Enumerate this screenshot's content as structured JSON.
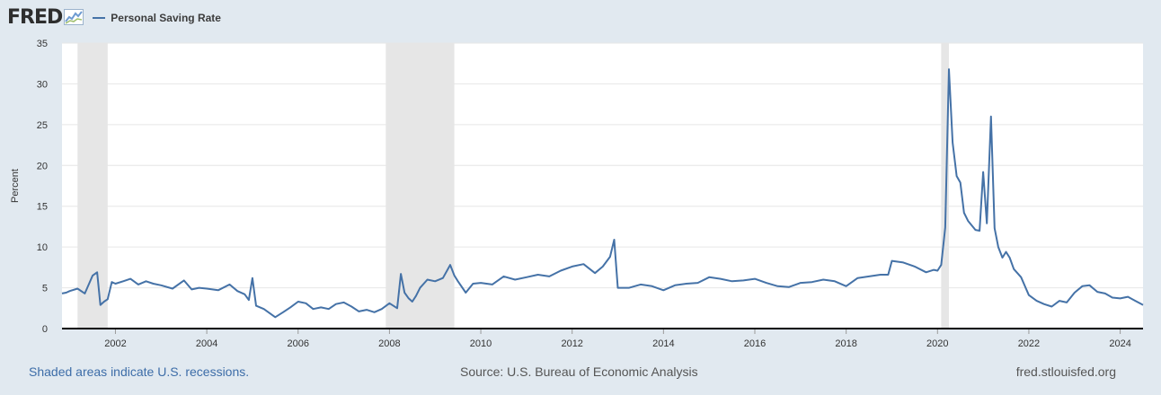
{
  "header": {
    "logo_text": "FRED",
    "logo_icon": "line-graph-icon",
    "series_label": "Personal Saving Rate"
  },
  "footer": {
    "recession_note": "Shaded areas indicate U.S. recessions.",
    "source": "Source: U.S. Bureau of Economic Analysis",
    "site": "fred.stlouisfed.org"
  },
  "colors": {
    "line": "#4572a7",
    "recession": "#e6e6e6",
    "plot_bg": "#ffffff",
    "page_bg": "#e1e9f0",
    "logo_accent": "#6e9bd1"
  },
  "chart_data": {
    "type": "line",
    "title": "",
    "xlabel": "",
    "ylabel": "Percent",
    "xlim": [
      2000.83,
      2024.5
    ],
    "ylim": [
      0,
      35
    ],
    "yticks": [
      0,
      5,
      10,
      15,
      20,
      25,
      30,
      35
    ],
    "xticks": [
      2002,
      2004,
      2006,
      2008,
      2010,
      2012,
      2014,
      2016,
      2018,
      2020,
      2022,
      2024
    ],
    "grid": true,
    "legend": "top-left",
    "recessions": [
      [
        2001.17,
        2001.83
      ],
      [
        2007.92,
        2009.42
      ],
      [
        2020.08,
        2020.25
      ]
    ],
    "series": [
      {
        "name": "Personal Saving Rate",
        "x": [
          2000.83,
          2000.92,
          2001.0,
          2001.17,
          2001.33,
          2001.5,
          2001.6,
          2001.67,
          2001.75,
          2001.83,
          2001.92,
          2002.0,
          2002.17,
          2002.33,
          2002.5,
          2002.67,
          2002.83,
          2003.0,
          2003.25,
          2003.5,
          2003.67,
          2003.83,
          2004.0,
          2004.25,
          2004.5,
          2004.67,
          2004.83,
          2004.92,
          2005.0,
          2005.08,
          2005.25,
          2005.5,
          2005.67,
          2005.83,
          2006.0,
          2006.17,
          2006.33,
          2006.5,
          2006.67,
          2006.83,
          2007.0,
          2007.17,
          2007.33,
          2007.5,
          2007.67,
          2007.83,
          2008.0,
          2008.17,
          2008.25,
          2008.33,
          2008.42,
          2008.5,
          2008.58,
          2008.67,
          2008.83,
          2009.0,
          2009.17,
          2009.33,
          2009.42,
          2009.5,
          2009.67,
          2009.83,
          2010.0,
          2010.25,
          2010.5,
          2010.75,
          2011.0,
          2011.25,
          2011.5,
          2011.75,
          2012.0,
          2012.25,
          2012.5,
          2012.67,
          2012.83,
          2012.92,
          2013.0,
          2013.25,
          2013.5,
          2013.75,
          2014.0,
          2014.25,
          2014.5,
          2014.75,
          2015.0,
          2015.25,
          2015.5,
          2015.75,
          2016.0,
          2016.25,
          2016.5,
          2016.75,
          2017.0,
          2017.25,
          2017.5,
          2017.75,
          2018.0,
          2018.25,
          2018.5,
          2018.75,
          2018.92,
          2019.0,
          2019.25,
          2019.5,
          2019.75,
          2019.92,
          2020.0,
          2020.08,
          2020.17,
          2020.25,
          2020.33,
          2020.42,
          2020.5,
          2020.58,
          2020.67,
          2020.83,
          2020.92,
          2021.0,
          2021.08,
          2021.17,
          2021.25,
          2021.33,
          2021.42,
          2021.5,
          2021.58,
          2021.67,
          2021.83,
          2022.0,
          2022.17,
          2022.33,
          2022.5,
          2022.67,
          2022.83,
          2023.0,
          2023.17,
          2023.33,
          2023.5,
          2023.67,
          2023.83,
          2024.0,
          2024.17,
          2024.33,
          2024.5
        ],
        "values": [
          4.3,
          4.4,
          4.6,
          4.9,
          4.3,
          6.5,
          6.9,
          2.9,
          3.3,
          3.6,
          5.7,
          5.5,
          5.8,
          6.1,
          5.4,
          5.8,
          5.5,
          5.3,
          4.9,
          5.9,
          4.8,
          5.0,
          4.9,
          4.7,
          5.4,
          4.6,
          4.2,
          3.5,
          6.2,
          2.8,
          2.4,
          1.4,
          2.0,
          2.6,
          3.3,
          3.1,
          2.4,
          2.6,
          2.4,
          3.0,
          3.2,
          2.7,
          2.1,
          2.3,
          2.0,
          2.4,
          3.1,
          2.5,
          6.7,
          4.4,
          3.7,
          3.3,
          4.0,
          5.0,
          6.0,
          5.8,
          6.2,
          7.8,
          6.5,
          5.8,
          4.4,
          5.5,
          5.6,
          5.4,
          6.4,
          6.0,
          6.3,
          6.6,
          6.4,
          7.1,
          7.6,
          7.9,
          6.8,
          7.6,
          8.8,
          10.9,
          5.0,
          5.0,
          5.4,
          5.2,
          4.7,
          5.3,
          5.5,
          5.6,
          6.3,
          6.1,
          5.8,
          5.9,
          6.1,
          5.6,
          5.2,
          5.1,
          5.6,
          5.7,
          6.0,
          5.8,
          5.2,
          6.2,
          6.4,
          6.6,
          6.6,
          8.3,
          8.1,
          7.6,
          6.9,
          7.2,
          7.1,
          7.8,
          12.4,
          31.8,
          22.8,
          18.7,
          17.9,
          14.2,
          13.2,
          12.1,
          12.0,
          19.2,
          12.9,
          26.0,
          12.3,
          10.0,
          8.7,
          9.4,
          8.7,
          7.3,
          6.3,
          4.1,
          3.4,
          3.0,
          2.7,
          3.4,
          3.2,
          4.4,
          5.2,
          5.3,
          4.5,
          4.3,
          3.8,
          3.7,
          3.9,
          3.4,
          2.9
        ]
      }
    ]
  }
}
